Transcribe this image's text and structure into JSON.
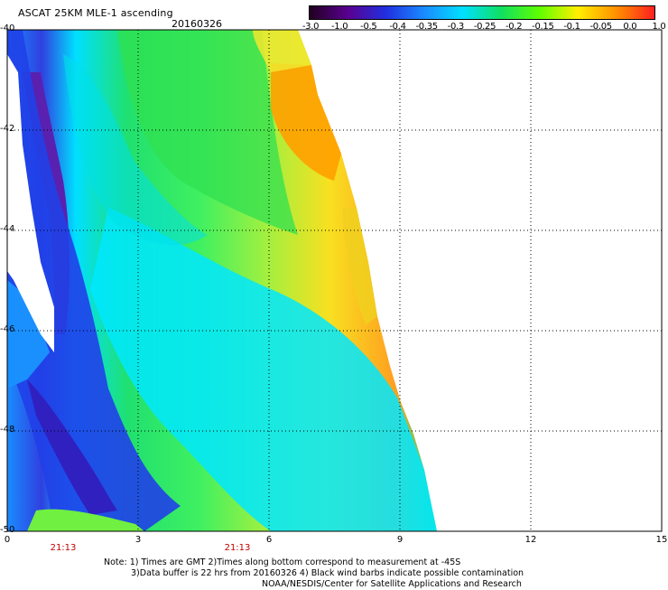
{
  "header": {
    "title": "ASCAT 25KM MLE-1 ascending",
    "date": "20160326"
  },
  "colorbar": {
    "labels": [
      "-3.0",
      "-1.0",
      "-0.5",
      "-0.4",
      "-0.35",
      "-0.3",
      "-0.25",
      "-0.2",
      "-0.15",
      "-0.1",
      "-0.05",
      "0.0",
      "1.0"
    ],
    "colors": [
      "#200020",
      "#5a0090",
      "#2030e0",
      "#1a8cff",
      "#00e0ff",
      "#10e060",
      "#60ff00",
      "#fff000",
      "#ff9000",
      "#ff2020"
    ]
  },
  "map": {
    "y_ticks": [
      "-40",
      "-42",
      "-44",
      "-46",
      "-48",
      "-50"
    ],
    "x_ticks": [
      "0",
      "3",
      "6",
      "9",
      "12",
      "15"
    ],
    "time_labels": [
      "21:13",
      "21:13"
    ],
    "background": "#ffffff",
    "grid_color": "#000000"
  },
  "notes": {
    "line1": "Note: 1) Times are GMT 2)Times along bottom correspond to measurement at -45S",
    "line2": "3)Data buffer is 22 hrs from 20160326 4) Black wind barbs indicate possible contamination",
    "line3": "NOAA/NESDIS/Center for Satellite Applications and Research"
  }
}
